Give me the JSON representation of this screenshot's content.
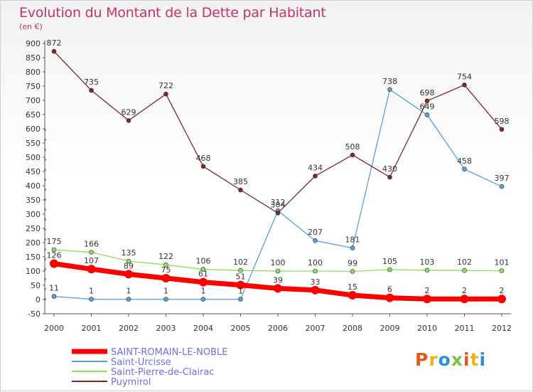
{
  "chart_data": {
    "type": "line",
    "title": "Evolution du Montant de la Dette par Habitant",
    "subtitle": "(en €)",
    "categories": [
      "2000",
      "2001",
      "2002",
      "2003",
      "2004",
      "2005",
      "2006",
      "2007",
      "2008",
      "2009",
      "2010",
      "2011",
      "2012"
    ],
    "ylim": [
      -50,
      900
    ],
    "yticks": [
      -50,
      0,
      50,
      100,
      150,
      200,
      250,
      300,
      350,
      400,
      450,
      500,
      550,
      600,
      650,
      700,
      750,
      800,
      850,
      900
    ],
    "grid": false,
    "legend_position": "bottom-left",
    "series": [
      {
        "name": "SAINT-ROMAIN-LE-NOBLE",
        "color": "#ff0000",
        "values": [
          126,
          107,
          89,
          75,
          61,
          51,
          39,
          33,
          15,
          6,
          2,
          2,
          2
        ]
      },
      {
        "name": "Saint-Urcisse",
        "color": "#5aa0d8",
        "values": [
          11,
          1,
          1,
          1,
          1,
          1,
          312,
          207,
          181,
          738,
          649,
          458,
          397
        ]
      },
      {
        "name": "Saint-Pierre-de-Clairac",
        "color": "#8cde5c",
        "values": [
          175,
          166,
          135,
          122,
          106,
          102,
          100,
          100,
          99,
          105,
          103,
          102,
          101
        ]
      },
      {
        "name": "Puymirol",
        "color": "#7a2a2a",
        "values": [
          872,
          735,
          629,
          722,
          468,
          385,
          304,
          434,
          508,
          430,
          698,
          754,
          598
        ]
      }
    ]
  },
  "logo": {
    "letters": [
      "P",
      "r",
      "o",
      "x",
      "i",
      "t",
      "i"
    ],
    "colors": [
      "#e05a1c",
      "#f0b020",
      "#2e8ecf",
      "#7cc242",
      "#e05a1c",
      "#f0b020",
      "#2e8ecf"
    ]
  }
}
